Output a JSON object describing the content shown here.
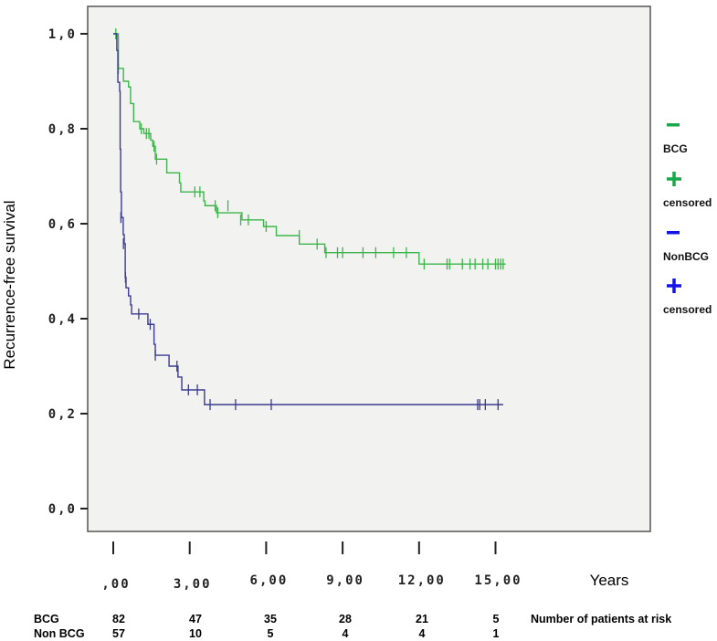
{
  "chart_data": {
    "type": "line",
    "subtype": "kaplan-meier step",
    "xlabel": "Years",
    "ylabel": "Recurrence-free survival",
    "xlim": [
      -0.5,
      20
    ],
    "ylim": [
      -0.05,
      1.05
    ],
    "x_ticks": [
      0,
      3,
      6,
      9,
      12,
      15
    ],
    "x_tick_labels": [
      ",00",
      "3,00",
      "6,00",
      "9,00",
      "12,00",
      "15,00"
    ],
    "y_ticks": [
      0,
      0.2,
      0.4,
      0.6,
      0.8,
      1.0
    ],
    "y_tick_labels": [
      "0,0",
      "0,2",
      "0,4",
      "0,6",
      "0,8",
      "1,0"
    ],
    "grid": false,
    "legend_position": "right",
    "legend": [
      {
        "symbol": "line",
        "label": "BCG",
        "color": "#1aa64a"
      },
      {
        "symbol": "plus",
        "label": "censored",
        "color": "#1aa64a"
      },
      {
        "symbol": "line",
        "label": "NonBCG",
        "color": "#1414e6"
      },
      {
        "symbol": "plus",
        "label": "censored",
        "color": "#1414e6"
      }
    ],
    "series": [
      {
        "name": "BCG",
        "color": "#3cb64a",
        "steps": [
          [
            0,
            1.0
          ],
          [
            0.2,
            0.927
          ],
          [
            0.4,
            0.9
          ],
          [
            0.6,
            0.888
          ],
          [
            0.68,
            0.853
          ],
          [
            0.8,
            0.815
          ],
          [
            1.04,
            0.8
          ],
          [
            1.2,
            0.79
          ],
          [
            1.47,
            0.776
          ],
          [
            1.55,
            0.763
          ],
          [
            1.65,
            0.736
          ],
          [
            2.1,
            0.707
          ],
          [
            2.6,
            0.686
          ],
          [
            2.65,
            0.667
          ],
          [
            3.55,
            0.648
          ],
          [
            3.6,
            0.638
          ],
          [
            4.05,
            0.623
          ],
          [
            5.05,
            0.608
          ],
          [
            5.9,
            0.594
          ],
          [
            6.4,
            0.575
          ],
          [
            7.3,
            0.557
          ],
          [
            8.3,
            0.539
          ],
          [
            12.0,
            0.515
          ]
        ],
        "end": 15.4,
        "censored": [
          [
            0.1,
            1.0
          ],
          [
            0.2,
            0.927
          ],
          [
            1.1,
            0.8
          ],
          [
            1.3,
            0.79
          ],
          [
            1.4,
            0.79
          ],
          [
            1.6,
            0.763
          ],
          [
            1.7,
            0.736
          ],
          [
            3.2,
            0.667
          ],
          [
            3.4,
            0.667
          ],
          [
            4.0,
            0.638
          ],
          [
            4.5,
            0.638
          ],
          [
            4.1,
            0.623
          ],
          [
            5.0,
            0.608
          ],
          [
            5.3,
            0.608
          ],
          [
            6.0,
            0.594
          ],
          [
            7.3,
            0.575
          ],
          [
            8.0,
            0.557
          ],
          [
            8.35,
            0.539
          ],
          [
            8.8,
            0.539
          ],
          [
            9.0,
            0.539
          ],
          [
            9.8,
            0.539
          ],
          [
            10.3,
            0.539
          ],
          [
            11.0,
            0.539
          ],
          [
            11.5,
            0.539
          ],
          [
            12.2,
            0.515
          ],
          [
            13.1,
            0.515
          ],
          [
            13.2,
            0.515
          ],
          [
            13.7,
            0.515
          ],
          [
            14.0,
            0.515
          ],
          [
            14.2,
            0.515
          ],
          [
            14.5,
            0.515
          ],
          [
            14.7,
            0.515
          ],
          [
            15.0,
            0.515
          ],
          [
            15.1,
            0.515
          ],
          [
            15.2,
            0.515
          ],
          [
            15.3,
            0.515
          ]
        ]
      },
      {
        "name": "NonBCG",
        "color": "#3b3b8f",
        "steps": [
          [
            0,
            1.0
          ],
          [
            0.14,
            0.965
          ],
          [
            0.18,
            0.898
          ],
          [
            0.25,
            0.879
          ],
          [
            0.27,
            0.757
          ],
          [
            0.29,
            0.667
          ],
          [
            0.32,
            0.613
          ],
          [
            0.39,
            0.577
          ],
          [
            0.43,
            0.558
          ],
          [
            0.47,
            0.487
          ],
          [
            0.5,
            0.465
          ],
          [
            0.6,
            0.448
          ],
          [
            0.68,
            0.429
          ],
          [
            0.72,
            0.41
          ],
          [
            1.36,
            0.388
          ],
          [
            1.6,
            0.346
          ],
          [
            1.65,
            0.323
          ],
          [
            2.19,
            0.3
          ],
          [
            2.54,
            0.277
          ],
          [
            2.69,
            0.25
          ],
          [
            3.58,
            0.219
          ]
        ],
        "end": 15.3,
        "censored": [
          [
            0.3,
            0.613
          ],
          [
            0.4,
            0.558
          ],
          [
            0.48,
            0.487
          ],
          [
            1.0,
            0.41
          ],
          [
            1.45,
            0.388
          ],
          [
            1.65,
            0.323
          ],
          [
            2.5,
            0.3
          ],
          [
            2.95,
            0.25
          ],
          [
            3.3,
            0.25
          ],
          [
            3.8,
            0.219
          ],
          [
            4.8,
            0.219
          ],
          [
            6.2,
            0.219
          ],
          [
            14.3,
            0.219
          ],
          [
            14.38,
            0.219
          ],
          [
            14.6,
            0.219
          ],
          [
            15.1,
            0.219
          ]
        ]
      }
    ],
    "risk_table": {
      "title": "Number of patients at risk",
      "rows": [
        {
          "label": "BCG",
          "values": [
            "82",
            "47",
            "35",
            "28",
            "21",
            "5"
          ]
        },
        {
          "label": "Non BCG",
          "values": [
            "57",
            "10",
            "5",
            "4",
            "4",
            "1"
          ]
        }
      ]
    }
  }
}
